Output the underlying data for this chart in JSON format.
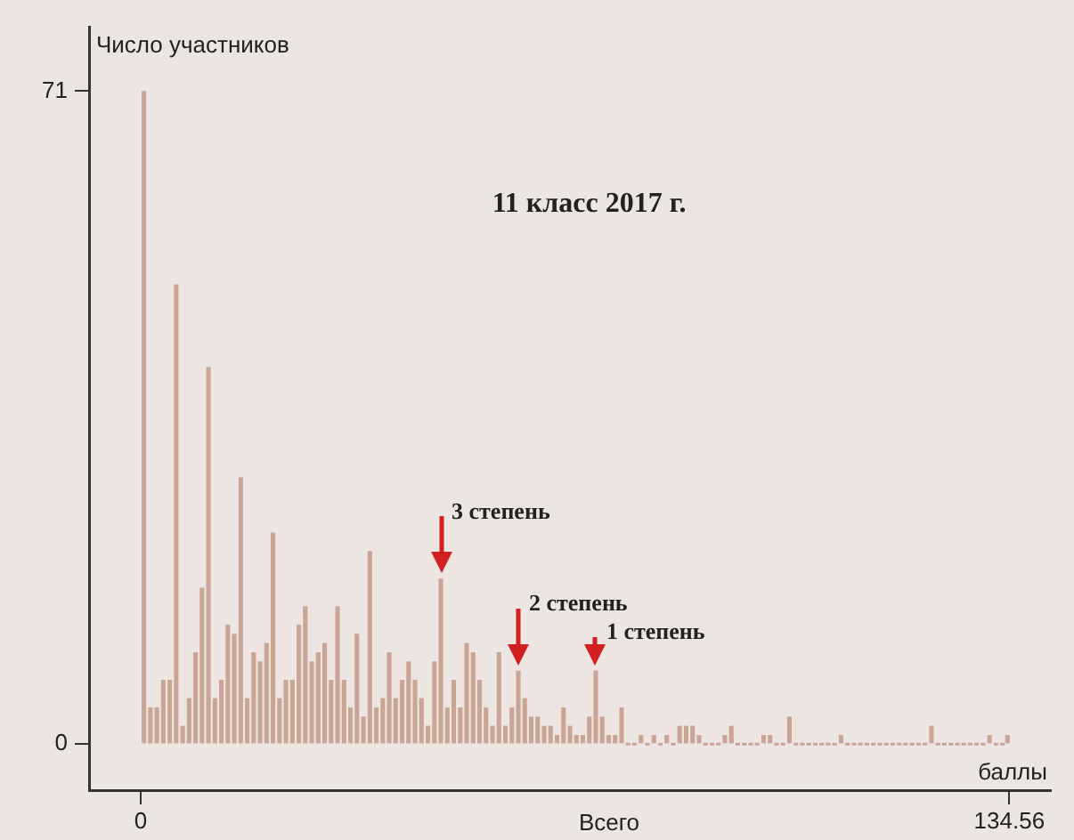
{
  "chart_data": {
    "type": "histogram",
    "title": "11 класс 2017 г.",
    "xlabel": "баллы",
    "ylabel": "Число участников",
    "bins": [
      0,
      1,
      2,
      3,
      4,
      5,
      6,
      7,
      8,
      9,
      10,
      11,
      12,
      13,
      14,
      15,
      16,
      17,
      18,
      19,
      20,
      21,
      22,
      23,
      24,
      25,
      26,
      27,
      28,
      29,
      30,
      31,
      32,
      33,
      34,
      35,
      36,
      37,
      38,
      39,
      40,
      41,
      42,
      43,
      44,
      45,
      46,
      47,
      48,
      49,
      50,
      51,
      52,
      53,
      54,
      55,
      56,
      57,
      58,
      59,
      60,
      61,
      62,
      63,
      64,
      65,
      66,
      67,
      68,
      69,
      70,
      71,
      72,
      73,
      74,
      75,
      76,
      77,
      78,
      79,
      80,
      81,
      82,
      83,
      84,
      85,
      86,
      87,
      88,
      89,
      90,
      91,
      92,
      93,
      94,
      95,
      96,
      97,
      98,
      99,
      100,
      101,
      102,
      103,
      104,
      105,
      106,
      107,
      108,
      109,
      110,
      111,
      112,
      113,
      114,
      115,
      116,
      117,
      118,
      119,
      120,
      121,
      122,
      123,
      124,
      125,
      126,
      127,
      128,
      129,
      130,
      131,
      132,
      133,
      134,
      134.56
    ],
    "values": [
      71,
      4,
      4,
      7,
      7,
      50,
      2,
      5,
      10,
      17,
      41,
      5,
      7,
      13,
      12,
      29,
      5,
      10,
      9,
      11,
      23,
      5,
      7,
      7,
      13,
      15,
      9,
      10,
      11,
      7,
      15,
      7,
      4,
      12,
      3,
      21,
      4,
      5,
      10,
      5,
      7,
      9,
      7,
      5,
      2,
      9,
      18,
      4,
      7,
      4,
      11,
      10,
      7,
      4,
      2,
      10,
      2,
      4,
      8,
      5,
      3,
      3,
      2,
      2,
      1,
      4,
      2,
      1,
      1,
      3,
      8,
      3,
      1,
      1,
      4,
      0,
      0,
      1,
      0,
      1,
      0,
      1,
      0,
      2,
      2,
      2,
      1,
      0,
      0,
      0,
      1,
      2,
      0,
      0,
      0,
      0,
      1,
      1,
      0,
      0,
      3,
      0,
      0,
      0,
      0,
      0,
      0,
      0,
      1,
      0,
      0,
      0,
      0,
      0,
      0,
      0,
      0,
      0,
      0,
      0,
      0,
      0,
      2,
      0,
      0,
      0,
      0,
      0,
      0,
      0,
      0,
      1,
      0,
      0,
      1
    ],
    "color": "#c9a595",
    "xlim": [
      -8,
      141
    ],
    "xticks": [
      0,
      134.56
    ],
    "ylim": [
      -5,
      78
    ],
    "yticks": [
      0,
      71
    ],
    "grid": false,
    "legend": false,
    "annotations": [
      {
        "text": "3 степень",
        "x": 46.5,
        "y": 18
      },
      {
        "text": "2 степень",
        "x": 58.5,
        "y": 8
      },
      {
        "text": "1 степень",
        "x": 70.5,
        "y": 8
      },
      "Всего"
    ]
  }
}
